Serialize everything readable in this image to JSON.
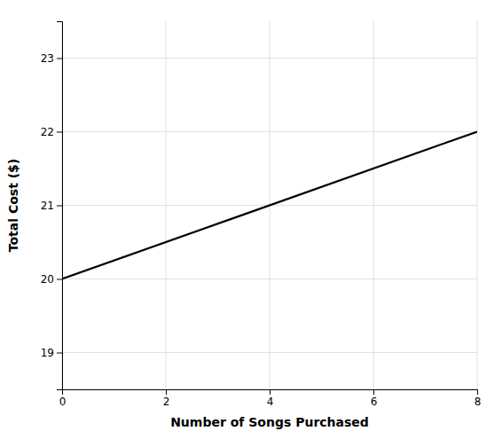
{
  "chart_data": {
    "type": "line",
    "x_label": "Number of Songs Purchased",
    "y_label": "Total Cost ($)",
    "x": [
      0,
      8
    ],
    "values": [
      20,
      22
    ],
    "color": "#000000",
    "xlim": [
      0,
      8
    ],
    "ylim": [
      18.5,
      23.5
    ],
    "xticks": [
      0,
      2,
      4,
      6,
      8
    ],
    "yticks": [
      19,
      20,
      21,
      22,
      23
    ],
    "grid": true
  }
}
